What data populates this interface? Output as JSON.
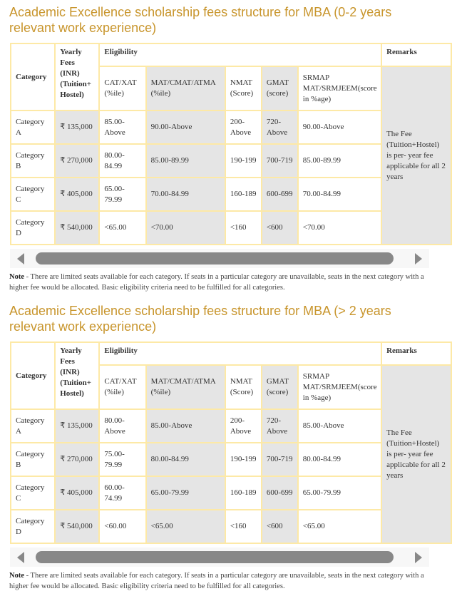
{
  "headers": {
    "category": "Category",
    "fees": "Yearly Fees (INR) (Tuition+ Hostel)",
    "eligibility": "Eligibility",
    "remarks": "Remarks",
    "sub": [
      "CAT/XAT (%ile)",
      "MAT/CMAT/ATMA (%ile)",
      "NMAT (Score)",
      "GMAT (score)",
      "SRMAP MAT/SRMJEEM(score in %age)"
    ]
  },
  "remarks_text": "The Fee (Tuition+Hostel) is per- year fee applicable for all 2 years",
  "note_label": "Note",
  "note_text": " - There are limited seats available for each category. If seats in a particular category are unavailable, seats in the next category with a higher fee would be allocated. Basic eligibility criteria need to be fulfilled for all categories.",
  "sections": [
    {
      "title": "Academic Excellence scholarship fees structure for MBA (0-2 years relevant work experience)",
      "rows": [
        [
          "Category A",
          "₹ 135,000",
          "85.00-Above",
          "90.00-Above",
          "200-Above",
          "720-Above",
          "90.00-Above"
        ],
        [
          "Category B",
          "₹ 270,000",
          "80.00-84.99",
          "85.00-89.99",
          "190-199",
          "700-719",
          "85.00-89.99"
        ],
        [
          "Category C",
          "₹ 405,000",
          "65.00-79.99",
          "70.00-84.99",
          "160-189",
          "600-699",
          "70.00-84.99"
        ],
        [
          "Category D",
          "₹ 540,000",
          "<65.00",
          "<70.00",
          "<160",
          "<600",
          "<70.00"
        ]
      ]
    },
    {
      "title": "Academic Excellence scholarship fees structure for MBA (> 2 years relevant work experience)",
      "rows": [
        [
          "Category A",
          "₹ 135,000",
          "80.00-Above",
          "85.00-Above",
          "200-Above",
          "720-Above",
          "85.00-Above"
        ],
        [
          "Category B",
          "₹ 270,000",
          "75.00-79.99",
          "80.00-84.99",
          "190-199",
          "700-719",
          "80.00-84.99"
        ],
        [
          "Category C",
          "₹ 405,000",
          "60.00-74.99",
          "65.00-79.99",
          "160-189",
          "600-699",
          "65.00-79.99"
        ],
        [
          "Category D",
          "₹ 540,000",
          "<60.00",
          "<65.00",
          "<160",
          "<600",
          "<65.00"
        ]
      ]
    }
  ]
}
